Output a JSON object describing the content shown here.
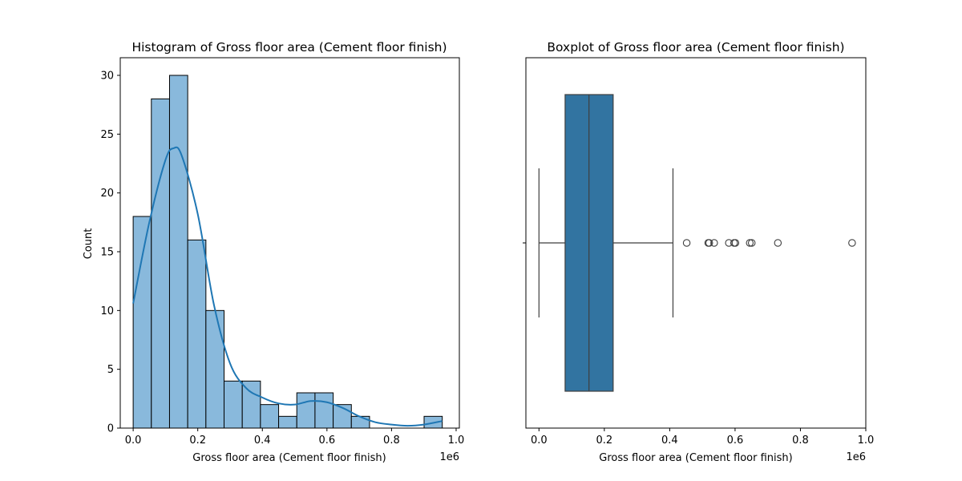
{
  "chart_data": [
    {
      "type": "histogram",
      "title": "Histogram of Gross floor area (Cement floor finish)",
      "xlabel": "Gross floor area (Cement floor finish)",
      "ylabel": "Count",
      "x_offset_label": "1e6",
      "xlim": [
        -0.04,
        1.01
      ],
      "ylim": [
        0,
        31.5
      ],
      "x_ticks": [
        0.0,
        0.2,
        0.4,
        0.6,
        0.8,
        1.0
      ],
      "x_tick_labels": [
        "0.0",
        "0.2",
        "0.4",
        "0.6",
        "0.8",
        "1.0"
      ],
      "y_ticks": [
        0,
        5,
        10,
        15,
        20,
        25,
        30
      ],
      "y_tick_labels": [
        "0",
        "5",
        "10",
        "15",
        "20",
        "25",
        "30"
      ],
      "bins": [
        {
          "start": 0.0,
          "end": 0.0563,
          "count": 18
        },
        {
          "start": 0.0563,
          "end": 0.1126,
          "count": 28
        },
        {
          "start": 0.1126,
          "end": 0.1689,
          "count": 30
        },
        {
          "start": 0.1689,
          "end": 0.2252,
          "count": 16
        },
        {
          "start": 0.2252,
          "end": 0.2815,
          "count": 10
        },
        {
          "start": 0.2815,
          "end": 0.3378,
          "count": 4
        },
        {
          "start": 0.3378,
          "end": 0.3941,
          "count": 4
        },
        {
          "start": 0.3941,
          "end": 0.4504,
          "count": 2
        },
        {
          "start": 0.4504,
          "end": 0.5067,
          "count": 1
        },
        {
          "start": 0.5067,
          "end": 0.563,
          "count": 3
        },
        {
          "start": 0.563,
          "end": 0.6193,
          "count": 3
        },
        {
          "start": 0.6193,
          "end": 0.6756,
          "count": 2
        },
        {
          "start": 0.6756,
          "end": 0.7319,
          "count": 1
        },
        {
          "start": 0.7319,
          "end": 0.7882,
          "count": 0
        },
        {
          "start": 0.7882,
          "end": 0.8445,
          "count": 0
        },
        {
          "start": 0.8445,
          "end": 0.9008,
          "count": 0
        },
        {
          "start": 0.9008,
          "end": 0.9571,
          "count": 1
        }
      ],
      "kde": {
        "x": [
          0.0,
          0.05,
          0.1,
          0.125,
          0.15,
          0.2,
          0.25,
          0.3,
          0.35,
          0.4,
          0.45,
          0.5,
          0.55,
          0.6,
          0.65,
          0.7,
          0.75,
          0.8,
          0.85,
          0.9,
          0.957
        ],
        "y": [
          10.6,
          17.5,
          22.8,
          23.8,
          23.2,
          18.2,
          10.5,
          5.5,
          3.4,
          2.6,
          2.1,
          2.0,
          2.3,
          2.2,
          1.7,
          1.0,
          0.5,
          0.3,
          0.2,
          0.3,
          0.6
        ]
      },
      "colors": {
        "bar_fill": "#89b9dc",
        "bar_edge": "#000000",
        "kde_line": "#1f77b4"
      }
    },
    {
      "type": "boxplot",
      "title": "Boxplot of Gross floor area (Cement floor finish)",
      "xlabel": "Gross floor area (Cement floor finish)",
      "x_offset_label": "1e6",
      "xlim": [
        -0.04,
        1.0
      ],
      "x_ticks": [
        0.0,
        0.2,
        0.4,
        0.6,
        0.8,
        1.0
      ],
      "x_tick_labels": [
        "0.0",
        "0.2",
        "0.4",
        "0.6",
        "0.8",
        "1.0"
      ],
      "whisker_low": 0.0,
      "q1": 0.08,
      "median": 0.153,
      "q3": 0.227,
      "whisker_high": 0.41,
      "outliers": [
        0.452,
        0.518,
        0.521,
        0.536,
        0.581,
        0.597,
        0.601,
        0.645,
        0.651,
        0.731,
        0.958
      ],
      "colors": {
        "box_fill": "#3274a1",
        "line": "#3f3f3f"
      }
    }
  ]
}
